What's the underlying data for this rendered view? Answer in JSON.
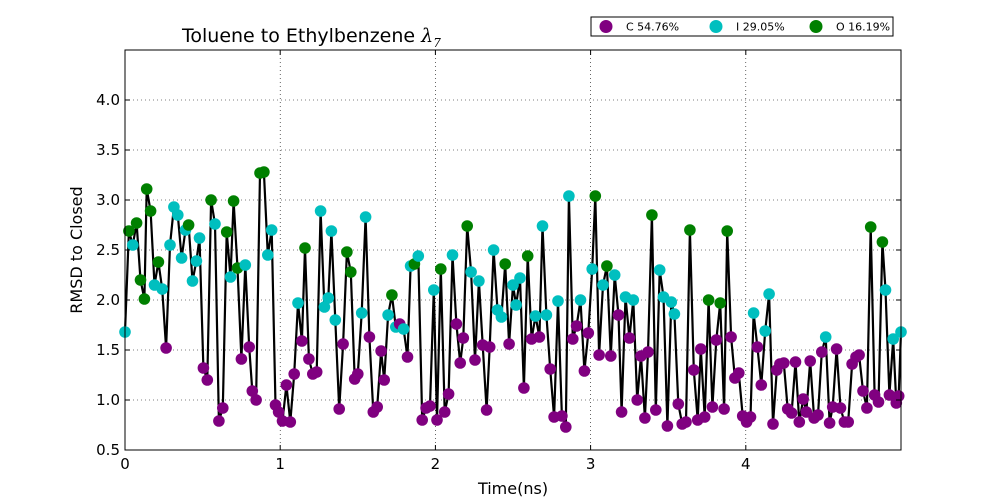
{
  "chart_data": {
    "type": "line",
    "title": "Toluene to Ethylbenzene",
    "title_symbol": "λ",
    "title_subscript": "7",
    "xlabel": "Time(ns)",
    "ylabel": "RMSD to Closed",
    "xlim": [
      0,
      5
    ],
    "ylim": [
      0.5,
      4.5
    ],
    "xticks": [
      "0",
      "1",
      "2",
      "3",
      "4"
    ],
    "yticks": [
      "0.5",
      "1.0",
      "1.5",
      "2.0",
      "2.5",
      "3.0",
      "3.5",
      "4.0"
    ],
    "grid": true,
    "legend_position": "top-right",
    "line_color": "#000000",
    "legend": [
      {
        "key": "C",
        "label": "C 54.76%",
        "color": "#800080"
      },
      {
        "key": "I",
        "label": "I 29.05%",
        "color": "#00bfbf"
      },
      {
        "key": "O",
        "label": "O 16.19%",
        "color": "#008000"
      }
    ],
    "points": [
      {
        "x": 0.0,
        "y": 1.68,
        "s": "I"
      },
      {
        "x": 0.025,
        "y": 2.69,
        "s": "O"
      },
      {
        "x": 0.05,
        "y": 2.55,
        "s": "I"
      },
      {
        "x": 0.075,
        "y": 2.77,
        "s": "O"
      },
      {
        "x": 0.1,
        "y": 2.2,
        "s": "O"
      },
      {
        "x": 0.125,
        "y": 2.01,
        "s": "O"
      },
      {
        "x": 0.14,
        "y": 3.11,
        "s": "O"
      },
      {
        "x": 0.165,
        "y": 2.89,
        "s": "O"
      },
      {
        "x": 0.19,
        "y": 2.15,
        "s": "I"
      },
      {
        "x": 0.215,
        "y": 2.38,
        "s": "O"
      },
      {
        "x": 0.24,
        "y": 2.11,
        "s": "I"
      },
      {
        "x": 0.265,
        "y": 1.52,
        "s": "C"
      },
      {
        "x": 0.29,
        "y": 2.55,
        "s": "I"
      },
      {
        "x": 0.315,
        "y": 2.93,
        "s": "I"
      },
      {
        "x": 0.34,
        "y": 2.85,
        "s": "I"
      },
      {
        "x": 0.365,
        "y": 2.42,
        "s": "I"
      },
      {
        "x": 0.39,
        "y": 2.7,
        "s": "I"
      },
      {
        "x": 0.41,
        "y": 2.75,
        "s": "O"
      },
      {
        "x": 0.435,
        "y": 2.19,
        "s": "I"
      },
      {
        "x": 0.46,
        "y": 2.39,
        "s": "I"
      },
      {
        "x": 0.48,
        "y": 2.62,
        "s": "I"
      },
      {
        "x": 0.505,
        "y": 1.32,
        "s": "C"
      },
      {
        "x": 0.53,
        "y": 1.2,
        "s": "C"
      },
      {
        "x": 0.555,
        "y": 3.0,
        "s": "O"
      },
      {
        "x": 0.58,
        "y": 2.76,
        "s": "I"
      },
      {
        "x": 0.605,
        "y": 0.79,
        "s": "C"
      },
      {
        "x": 0.63,
        "y": 0.92,
        "s": "C"
      },
      {
        "x": 0.655,
        "y": 2.68,
        "s": "O"
      },
      {
        "x": 0.68,
        "y": 2.23,
        "s": "I"
      },
      {
        "x": 0.7,
        "y": 2.99,
        "s": "O"
      },
      {
        "x": 0.725,
        "y": 2.32,
        "s": "O"
      },
      {
        "x": 0.75,
        "y": 1.41,
        "s": "C"
      },
      {
        "x": 0.775,
        "y": 2.35,
        "s": "I"
      },
      {
        "x": 0.8,
        "y": 1.53,
        "s": "C"
      },
      {
        "x": 0.82,
        "y": 1.09,
        "s": "C"
      },
      {
        "x": 0.845,
        "y": 1.0,
        "s": "C"
      },
      {
        "x": 0.87,
        "y": 3.27,
        "s": "O"
      },
      {
        "x": 0.895,
        "y": 3.28,
        "s": "O"
      },
      {
        "x": 0.92,
        "y": 2.45,
        "s": "I"
      },
      {
        "x": 0.945,
        "y": 2.7,
        "s": "I"
      },
      {
        "x": 0.97,
        "y": 0.95,
        "s": "C"
      },
      {
        "x": 0.99,
        "y": 0.88,
        "s": "C"
      },
      {
        "x": 1.015,
        "y": 0.79,
        "s": "C"
      },
      {
        "x": 1.04,
        "y": 1.15,
        "s": "C"
      },
      {
        "x": 1.065,
        "y": 0.78,
        "s": "C"
      },
      {
        "x": 1.09,
        "y": 1.26,
        "s": "C"
      },
      {
        "x": 1.115,
        "y": 1.97,
        "s": "I"
      },
      {
        "x": 1.14,
        "y": 1.59,
        "s": "C"
      },
      {
        "x": 1.16,
        "y": 2.52,
        "s": "O"
      },
      {
        "x": 1.185,
        "y": 1.41,
        "s": "C"
      },
      {
        "x": 1.21,
        "y": 1.26,
        "s": "C"
      },
      {
        "x": 1.235,
        "y": 1.28,
        "s": "C"
      },
      {
        "x": 1.26,
        "y": 2.89,
        "s": "I"
      },
      {
        "x": 1.285,
        "y": 1.93,
        "s": "I"
      },
      {
        "x": 1.31,
        "y": 2.02,
        "s": "I"
      },
      {
        "x": 1.33,
        "y": 2.69,
        "s": "I"
      },
      {
        "x": 1.355,
        "y": 1.8,
        "s": "I"
      },
      {
        "x": 1.38,
        "y": 0.91,
        "s": "C"
      },
      {
        "x": 1.405,
        "y": 1.56,
        "s": "C"
      },
      {
        "x": 1.43,
        "y": 2.48,
        "s": "O"
      },
      {
        "x": 1.455,
        "y": 2.28,
        "s": "O"
      },
      {
        "x": 1.48,
        "y": 1.21,
        "s": "C"
      },
      {
        "x": 1.5,
        "y": 1.26,
        "s": "C"
      },
      {
        "x": 1.525,
        "y": 1.87,
        "s": "I"
      },
      {
        "x": 1.55,
        "y": 2.83,
        "s": "I"
      },
      {
        "x": 1.575,
        "y": 1.63,
        "s": "C"
      },
      {
        "x": 1.6,
        "y": 0.88,
        "s": "C"
      },
      {
        "x": 1.625,
        "y": 0.93,
        "s": "C"
      },
      {
        "x": 1.65,
        "y": 1.49,
        "s": "C"
      },
      {
        "x": 1.67,
        "y": 1.2,
        "s": "C"
      },
      {
        "x": 1.695,
        "y": 1.85,
        "s": "I"
      },
      {
        "x": 1.72,
        "y": 2.05,
        "s": "O"
      },
      {
        "x": 1.745,
        "y": 1.73,
        "s": "I"
      },
      {
        "x": 1.77,
        "y": 1.76,
        "s": "C"
      },
      {
        "x": 1.795,
        "y": 1.71,
        "s": "I"
      },
      {
        "x": 1.82,
        "y": 1.43,
        "s": "C"
      },
      {
        "x": 1.84,
        "y": 2.34,
        "s": "I"
      },
      {
        "x": 1.865,
        "y": 2.36,
        "s": "O"
      },
      {
        "x": 1.89,
        "y": 2.44,
        "s": "I"
      },
      {
        "x": 1.915,
        "y": 0.8,
        "s": "C"
      },
      {
        "x": 1.94,
        "y": 0.92,
        "s": "C"
      },
      {
        "x": 1.965,
        "y": 0.94,
        "s": "C"
      },
      {
        "x": 1.99,
        "y": 2.1,
        "s": "I"
      },
      {
        "x": 2.01,
        "y": 0.8,
        "s": "C"
      },
      {
        "x": 2.035,
        "y": 2.31,
        "s": "O"
      },
      {
        "x": 2.06,
        "y": 0.88,
        "s": "C"
      },
      {
        "x": 2.085,
        "y": 1.06,
        "s": "C"
      },
      {
        "x": 2.11,
        "y": 2.45,
        "s": "I"
      },
      {
        "x": 2.135,
        "y": 1.76,
        "s": "C"
      },
      {
        "x": 2.16,
        "y": 1.37,
        "s": "C"
      },
      {
        "x": 2.18,
        "y": 1.62,
        "s": "C"
      },
      {
        "x": 2.205,
        "y": 2.74,
        "s": "O"
      },
      {
        "x": 2.23,
        "y": 2.28,
        "s": "I"
      },
      {
        "x": 2.255,
        "y": 1.4,
        "s": "C"
      },
      {
        "x": 2.28,
        "y": 2.19,
        "s": "I"
      },
      {
        "x": 2.305,
        "y": 1.55,
        "s": "C"
      },
      {
        "x": 2.33,
        "y": 0.9,
        "s": "C"
      },
      {
        "x": 2.35,
        "y": 1.53,
        "s": "C"
      },
      {
        "x": 2.375,
        "y": 2.5,
        "s": "I"
      },
      {
        "x": 2.4,
        "y": 1.9,
        "s": "I"
      },
      {
        "x": 2.425,
        "y": 1.83,
        "s": "I"
      },
      {
        "x": 2.45,
        "y": 2.36,
        "s": "O"
      },
      {
        "x": 2.475,
        "y": 1.56,
        "s": "C"
      },
      {
        "x": 2.5,
        "y": 2.15,
        "s": "I"
      },
      {
        "x": 2.52,
        "y": 1.95,
        "s": "I"
      },
      {
        "x": 2.545,
        "y": 2.22,
        "s": "I"
      },
      {
        "x": 2.57,
        "y": 1.12,
        "s": "C"
      },
      {
        "x": 2.595,
        "y": 2.44,
        "s": "O"
      },
      {
        "x": 2.62,
        "y": 1.61,
        "s": "C"
      },
      {
        "x": 2.645,
        "y": 1.84,
        "s": "I"
      },
      {
        "x": 2.67,
        "y": 1.63,
        "s": "C"
      },
      {
        "x": 2.69,
        "y": 2.74,
        "s": "I"
      },
      {
        "x": 2.715,
        "y": 1.85,
        "s": "I"
      },
      {
        "x": 2.74,
        "y": 1.31,
        "s": "C"
      },
      {
        "x": 2.765,
        "y": 0.83,
        "s": "C"
      },
      {
        "x": 2.79,
        "y": 1.99,
        "s": "I"
      },
      {
        "x": 2.815,
        "y": 0.84,
        "s": "C"
      },
      {
        "x": 2.84,
        "y": 0.73,
        "s": "C"
      },
      {
        "x": 2.86,
        "y": 3.04,
        "s": "I"
      },
      {
        "x": 2.885,
        "y": 1.61,
        "s": "C"
      },
      {
        "x": 2.91,
        "y": 1.74,
        "s": "C"
      },
      {
        "x": 2.935,
        "y": 2.0,
        "s": "I"
      },
      {
        "x": 2.96,
        "y": 1.29,
        "s": "C"
      },
      {
        "x": 2.985,
        "y": 1.67,
        "s": "C"
      },
      {
        "x": 3.01,
        "y": 2.31,
        "s": "I"
      },
      {
        "x": 3.03,
        "y": 3.04,
        "s": "O"
      },
      {
        "x": 3.055,
        "y": 1.45,
        "s": "C"
      },
      {
        "x": 3.08,
        "y": 2.15,
        "s": "I"
      },
      {
        "x": 3.105,
        "y": 2.34,
        "s": "O"
      },
      {
        "x": 3.13,
        "y": 1.44,
        "s": "C"
      },
      {
        "x": 3.155,
        "y": 2.25,
        "s": "I"
      },
      {
        "x": 3.18,
        "y": 1.85,
        "s": "C"
      },
      {
        "x": 3.2,
        "y": 0.88,
        "s": "C"
      },
      {
        "x": 3.225,
        "y": 2.03,
        "s": "I"
      },
      {
        "x": 3.25,
        "y": 1.62,
        "s": "C"
      },
      {
        "x": 3.275,
        "y": 2.0,
        "s": "I"
      },
      {
        "x": 3.3,
        "y": 1.0,
        "s": "C"
      },
      {
        "x": 3.325,
        "y": 1.44,
        "s": "C"
      },
      {
        "x": 3.35,
        "y": 0.82,
        "s": "C"
      },
      {
        "x": 3.37,
        "y": 1.48,
        "s": "C"
      },
      {
        "x": 3.395,
        "y": 2.85,
        "s": "O"
      },
      {
        "x": 3.42,
        "y": 0.9,
        "s": "C"
      },
      {
        "x": 3.445,
        "y": 2.3,
        "s": "I"
      },
      {
        "x": 3.47,
        "y": 2.03,
        "s": "I"
      },
      {
        "x": 3.495,
        "y": 0.74,
        "s": "C"
      },
      {
        "x": 3.52,
        "y": 1.98,
        "s": "I"
      },
      {
        "x": 3.54,
        "y": 1.86,
        "s": "I"
      },
      {
        "x": 3.565,
        "y": 0.96,
        "s": "C"
      },
      {
        "x": 3.59,
        "y": 0.76,
        "s": "C"
      },
      {
        "x": 3.615,
        "y": 0.78,
        "s": "C"
      },
      {
        "x": 3.64,
        "y": 2.7,
        "s": "O"
      },
      {
        "x": 3.665,
        "y": 1.3,
        "s": "C"
      },
      {
        "x": 3.69,
        "y": 0.8,
        "s": "C"
      },
      {
        "x": 3.71,
        "y": 1.51,
        "s": "C"
      },
      {
        "x": 3.735,
        "y": 0.83,
        "s": "C"
      },
      {
        "x": 3.76,
        "y": 2.0,
        "s": "O"
      },
      {
        "x": 3.785,
        "y": 0.93,
        "s": "C"
      },
      {
        "x": 3.81,
        "y": 1.6,
        "s": "C"
      },
      {
        "x": 3.835,
        "y": 1.97,
        "s": "O"
      },
      {
        "x": 3.86,
        "y": 0.91,
        "s": "C"
      },
      {
        "x": 3.88,
        "y": 2.69,
        "s": "O"
      },
      {
        "x": 3.905,
        "y": 1.63,
        "s": "C"
      },
      {
        "x": 3.93,
        "y": 1.22,
        "s": "C"
      },
      {
        "x": 3.955,
        "y": 1.27,
        "s": "C"
      },
      {
        "x": 3.98,
        "y": 0.84,
        "s": "C"
      },
      {
        "x": 4.005,
        "y": 0.78,
        "s": "C"
      },
      {
        "x": 4.03,
        "y": 0.83,
        "s": "C"
      },
      {
        "x": 4.05,
        "y": 1.87,
        "s": "I"
      },
      {
        "x": 4.075,
        "y": 1.53,
        "s": "C"
      },
      {
        "x": 4.1,
        "y": 1.15,
        "s": "C"
      },
      {
        "x": 4.125,
        "y": 1.69,
        "s": "I"
      },
      {
        "x": 4.15,
        "y": 2.06,
        "s": "I"
      },
      {
        "x": 4.175,
        "y": 0.76,
        "s": "C"
      },
      {
        "x": 4.2,
        "y": 1.3,
        "s": "C"
      },
      {
        "x": 4.22,
        "y": 1.36,
        "s": "C"
      },
      {
        "x": 4.245,
        "y": 1.37,
        "s": "C"
      },
      {
        "x": 4.27,
        "y": 0.91,
        "s": "C"
      },
      {
        "x": 4.295,
        "y": 0.87,
        "s": "C"
      },
      {
        "x": 4.32,
        "y": 1.38,
        "s": "C"
      },
      {
        "x": 4.345,
        "y": 0.78,
        "s": "C"
      },
      {
        "x": 4.37,
        "y": 1.01,
        "s": "C"
      },
      {
        "x": 4.39,
        "y": 0.88,
        "s": "C"
      },
      {
        "x": 4.415,
        "y": 1.39,
        "s": "C"
      },
      {
        "x": 4.44,
        "y": 0.82,
        "s": "C"
      },
      {
        "x": 4.465,
        "y": 0.85,
        "s": "C"
      },
      {
        "x": 4.49,
        "y": 1.48,
        "s": "C"
      },
      {
        "x": 4.515,
        "y": 1.63,
        "s": "I"
      },
      {
        "x": 4.54,
        "y": 0.77,
        "s": "C"
      },
      {
        "x": 4.56,
        "y": 0.93,
        "s": "C"
      },
      {
        "x": 4.585,
        "y": 1.51,
        "s": "C"
      },
      {
        "x": 4.61,
        "y": 0.92,
        "s": "C"
      },
      {
        "x": 4.635,
        "y": 0.78,
        "s": "C"
      },
      {
        "x": 4.66,
        "y": 0.78,
        "s": "C"
      },
      {
        "x": 4.685,
        "y": 1.36,
        "s": "C"
      },
      {
        "x": 4.71,
        "y": 1.43,
        "s": "C"
      },
      {
        "x": 4.73,
        "y": 1.45,
        "s": "C"
      },
      {
        "x": 4.755,
        "y": 1.09,
        "s": "C"
      },
      {
        "x": 4.78,
        "y": 0.92,
        "s": "C"
      },
      {
        "x": 4.805,
        "y": 2.73,
        "s": "O"
      },
      {
        "x": 4.83,
        "y": 1.05,
        "s": "C"
      },
      {
        "x": 4.855,
        "y": 0.98,
        "s": "C"
      },
      {
        "x": 4.88,
        "y": 2.58,
        "s": "O"
      },
      {
        "x": 4.9,
        "y": 2.1,
        "s": "I"
      },
      {
        "x": 4.925,
        "y": 1.05,
        "s": "C"
      },
      {
        "x": 4.95,
        "y": 1.61,
        "s": "I"
      },
      {
        "x": 4.97,
        "y": 0.97,
        "s": "C"
      },
      {
        "x": 4.985,
        "y": 1.04,
        "s": "C"
      },
      {
        "x": 5.0,
        "y": 1.68,
        "s": "I"
      }
    ]
  }
}
